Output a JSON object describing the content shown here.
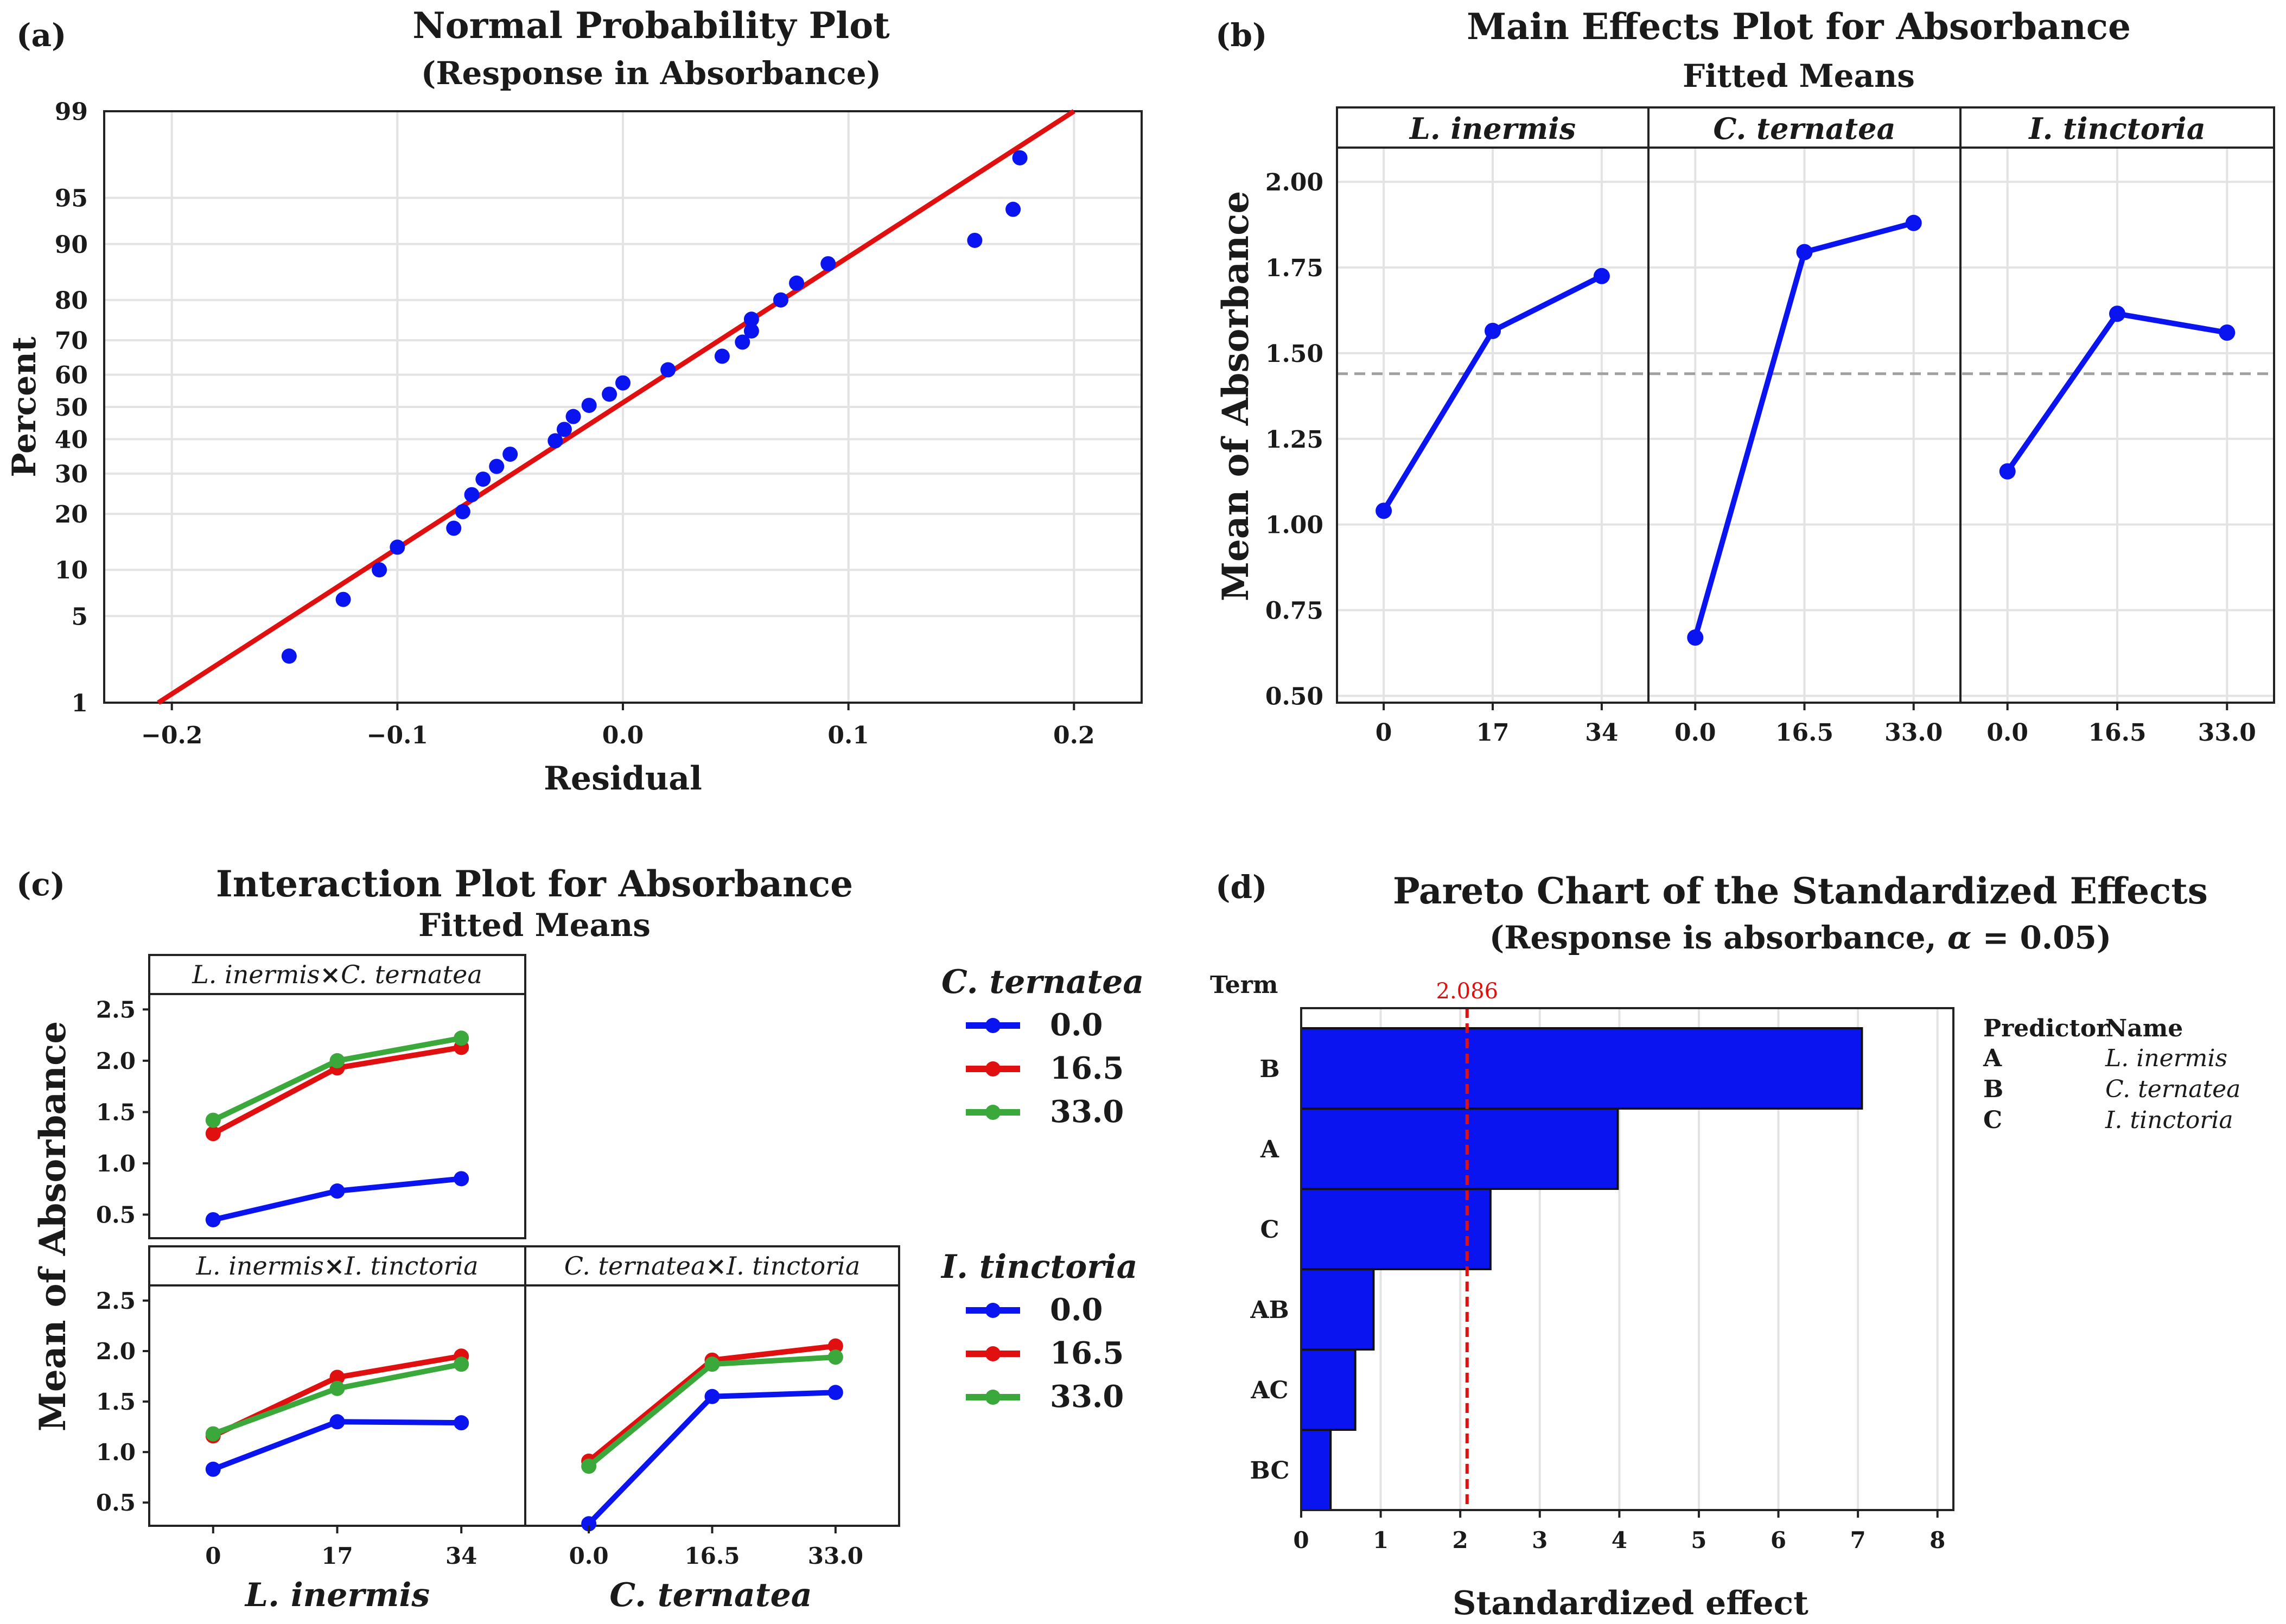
{
  "colors": {
    "blue": "#0a14f0",
    "red": "#e01010",
    "green": "#3aa83a",
    "ref": "#a0a0a0"
  },
  "chart_data": [
    {
      "panel": "a",
      "label": "(a)",
      "type": "scatter",
      "title": "Normal Probability Plot",
      "subtitle": "(Response in Absorbance)",
      "xlabel": "Residual",
      "ylabel": "Percent",
      "xlim": [
        -0.23,
        0.23
      ],
      "xticks": [
        -0.2,
        -0.1,
        0.0,
        0.1,
        0.2
      ],
      "xtick_labels": [
        "−0.2",
        "−0.1",
        "0.0",
        "0.1",
        "0.2"
      ],
      "yticks": [
        1,
        5,
        10,
        20,
        30,
        40,
        50,
        60,
        70,
        80,
        90,
        95,
        99
      ],
      "yticks_text": [
        "1",
        "5",
        "10",
        "20",
        "30",
        "40",
        "50",
        "60",
        "70",
        "80",
        "90",
        "95",
        "99"
      ],
      "points": [
        [
          -0.148,
          2.5
        ],
        [
          -0.124,
          6.5
        ],
        [
          -0.108,
          10.0
        ],
        [
          -0.1,
          13.5
        ],
        [
          -0.075,
          17.0
        ],
        [
          -0.071,
          20.5
        ],
        [
          -0.067,
          24.5
        ],
        [
          -0.062,
          28.5
        ],
        [
          -0.056,
          32.0
        ],
        [
          -0.05,
          35.5
        ],
        [
          -0.03,
          39.5
        ],
        [
          -0.026,
          43.0
        ],
        [
          -0.022,
          47.0
        ],
        [
          -0.015,
          50.5
        ],
        [
          -0.006,
          54.0
        ],
        [
          0.0,
          57.5
        ],
        [
          0.02,
          61.5
        ],
        [
          0.044,
          65.5
        ],
        [
          0.053,
          69.5
        ],
        [
          0.057,
          72.5
        ],
        [
          0.057,
          75.5
        ],
        [
          0.07,
          80.0
        ],
        [
          0.077,
          83.5
        ],
        [
          0.091,
          87.0
        ],
        [
          0.156,
          90.5
        ],
        [
          0.173,
          94.0
        ],
        [
          0.176,
          97.5
        ]
      ],
      "fit_line": [
        [
          -0.206,
          1
        ],
        [
          0.2,
          99
        ]
      ]
    },
    {
      "panel": "b",
      "label": "(b)",
      "type": "line",
      "title": "Main Effects Plot for Absorbance",
      "subtitle": "Fitted Means",
      "ylabel": "Mean of Absorbance",
      "ylim": [
        0.48,
        2.1
      ],
      "yticks": [
        0.5,
        0.75,
        1.0,
        1.25,
        1.5,
        1.75,
        2.0
      ],
      "yticks_text": [
        "0.50",
        "0.75",
        "1.00",
        "1.25",
        "1.50",
        "1.75",
        "2.00"
      ],
      "mean_line": 1.44,
      "factors": [
        {
          "name": "L. inermis",
          "levels": [
            "0",
            "17",
            "34"
          ],
          "values": [
            1.04,
            1.565,
            1.725
          ]
        },
        {
          "name": "C. ternatea",
          "levels": [
            "0.0",
            "16.5",
            "33.0"
          ],
          "values": [
            0.67,
            1.795,
            1.88
          ]
        },
        {
          "name": "I. tinctoria",
          "levels": [
            "0.0",
            "16.5",
            "33.0"
          ],
          "values": [
            1.155,
            1.615,
            1.56
          ]
        }
      ]
    },
    {
      "panel": "c",
      "label": "(c)",
      "type": "line",
      "title": "Interaction Plot for Absorbance",
      "subtitle": "Fitted Means",
      "ylabel": "Mean of Absorbance",
      "ylim": [
        0.27,
        2.65
      ],
      "yticks": [
        0.5,
        1.0,
        1.5,
        2.0,
        2.5
      ],
      "yticks_text": [
        "0.5",
        "1.0",
        "1.5",
        "2.0",
        "2.5"
      ],
      "xlabels": [
        "L. inermis",
        "C. ternatea"
      ],
      "levels_x": [
        [
          "0",
          "17",
          "34"
        ],
        [
          "0.0",
          "16.5",
          "33.0"
        ]
      ],
      "legends": [
        {
          "title": "C. ternatea",
          "entries": [
            "0.0",
            "16.5",
            "33.0"
          ]
        },
        {
          "title": "I. tinctoria",
          "entries": [
            "0.0",
            "16.5",
            "33.0"
          ]
        }
      ],
      "subplots": [
        {
          "title_a": "L. inermis",
          "times": "×",
          "title_b": "C. ternatea",
          "series": [
            {
              "name": "0.0",
              "values": [
                0.45,
                0.73,
                0.85
              ]
            },
            {
              "name": "16.5",
              "values": [
                1.29,
                1.93,
                2.13
              ]
            },
            {
              "name": "33.0",
              "values": [
                1.42,
                2.0,
                2.22
              ]
            }
          ]
        },
        {
          "title_a": "L. inermis",
          "times": "×",
          "title_b": "I. tinctoria",
          "series": [
            {
              "name": "0.0",
              "values": [
                0.83,
                1.3,
                1.29
              ]
            },
            {
              "name": "16.5",
              "values": [
                1.16,
                1.74,
                1.95
              ]
            },
            {
              "name": "33.0",
              "values": [
                1.18,
                1.63,
                1.87
              ]
            }
          ]
        },
        {
          "title_a": "C. ternatea",
          "times": "×",
          "title_b": "I. tinctoria",
          "series": [
            {
              "name": "0.0",
              "values": [
                0.29,
                1.55,
                1.59
              ]
            },
            {
              "name": "16.5",
              "values": [
                0.91,
                1.91,
                2.05
              ]
            },
            {
              "name": "33.0",
              "values": [
                0.86,
                1.87,
                1.94
              ]
            }
          ]
        }
      ]
    },
    {
      "panel": "d",
      "label": "(d)",
      "type": "bar",
      "title": "Pareto Chart of the Standardized Effects",
      "subtitle_pre": "(Response is absorbance, ",
      "subtitle_alpha": "α",
      "subtitle_post": " = 0.05)",
      "xlabel": "Standardized effect",
      "term_label": "Term",
      "xlim": [
        0,
        8.2
      ],
      "xticks": [
        0,
        1,
        2,
        3,
        4,
        5,
        6,
        7,
        8
      ],
      "xticks_text": [
        "0",
        "1",
        "2",
        "3",
        "4",
        "5",
        "6",
        "7",
        "8"
      ],
      "reference": 2.086,
      "reference_label": "2.086",
      "categories": [
        "B",
        "A",
        "C",
        "AB",
        "AC",
        "BC"
      ],
      "values": [
        7.05,
        3.98,
        2.38,
        0.91,
        0.68,
        0.37
      ],
      "predictor_header": "Predictor",
      "name_header": "Name",
      "predictors": [
        {
          "code": "A",
          "name": "L. inermis"
        },
        {
          "code": "B",
          "name": "C. ternatea"
        },
        {
          "code": "C",
          "name": "I. tinctoria"
        }
      ]
    }
  ]
}
